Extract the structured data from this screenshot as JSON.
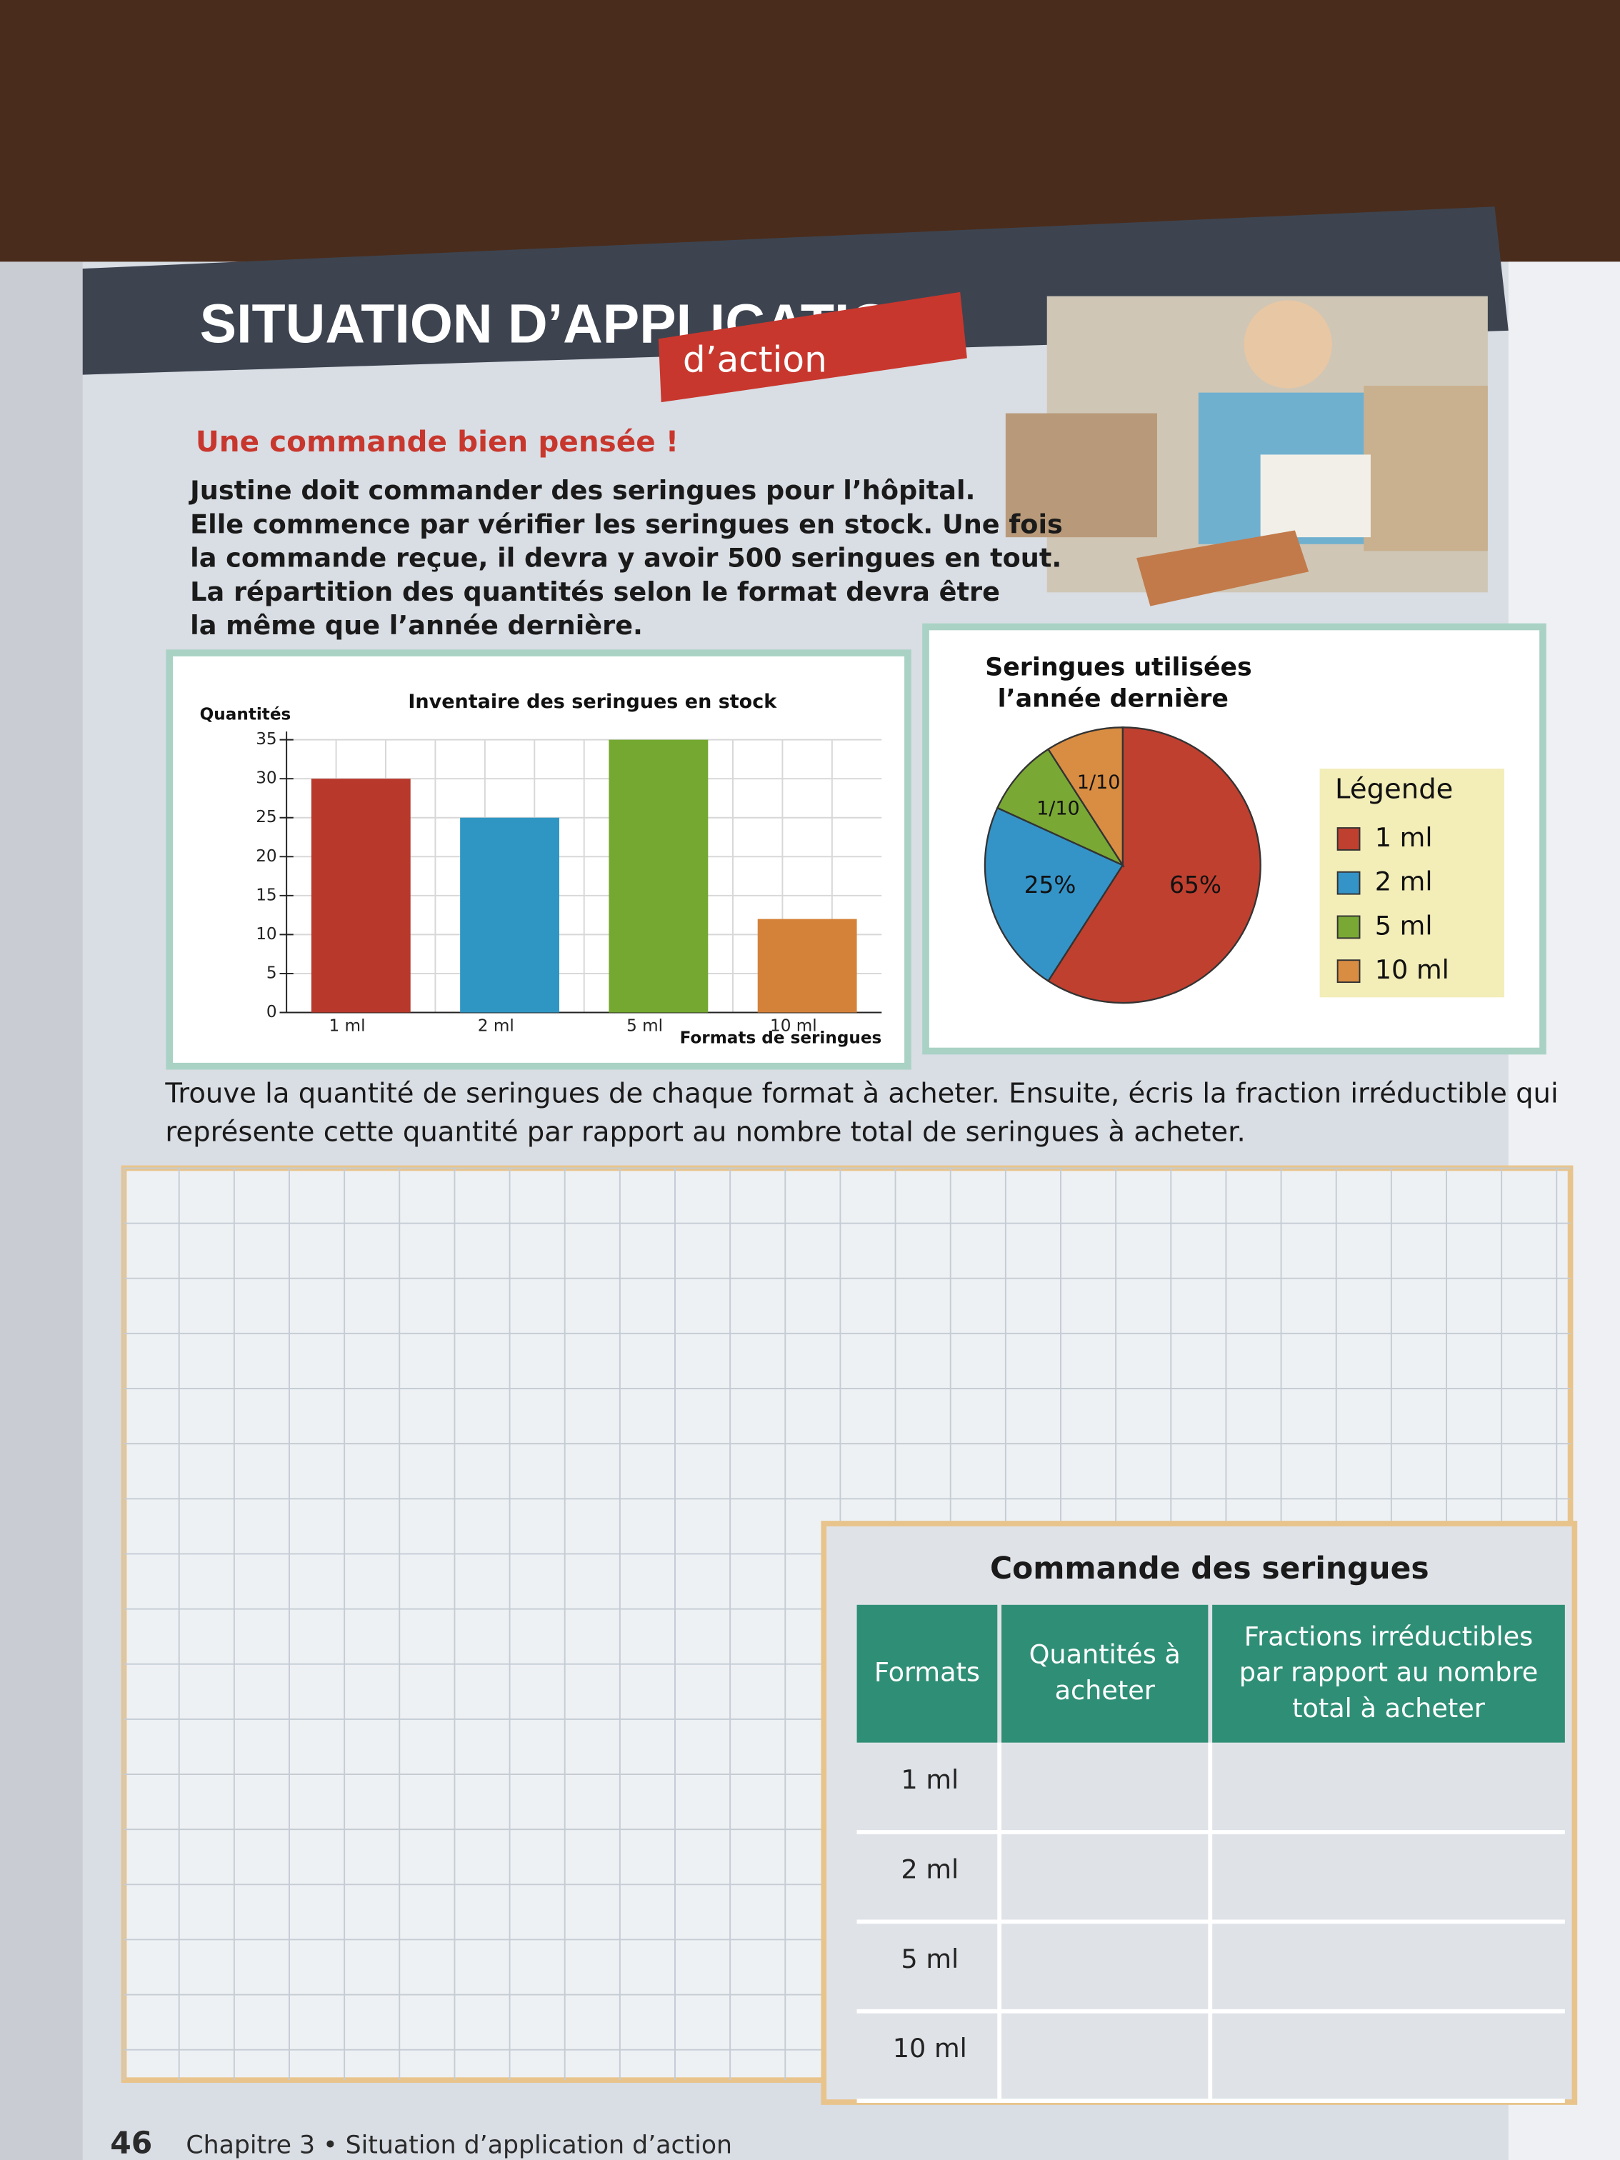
{
  "header": {
    "title": "SITUATION D’APPLICATION",
    "tag": "d’action"
  },
  "problem": {
    "heading": "Une commande bien pensée !",
    "lines": [
      "Justine doit commander des seringues pour l’hôpital.",
      "Elle commence par vérifier les seringues en stock. Une fois",
      "la commande reçue, il devra y avoir 500 seringues en tout.",
      "La répartition des quantités selon le format devra être",
      "la même que l’année dernière."
    ]
  },
  "chart_data": [
    {
      "type": "bar",
      "title": "Inventaire des seringues en stock",
      "y_label": "Quantités",
      "x_label": "Formats de seringues",
      "categories": [
        "1 ml",
        "2 ml",
        "5 ml",
        "10 ml"
      ],
      "values": [
        30,
        25,
        35,
        12
      ],
      "colors": [
        "#b8382c",
        "#2f96c4",
        "#74a830",
        "#d4823a"
      ],
      "ylim": [
        0,
        35
      ],
      "yticks": [
        0,
        5,
        10,
        15,
        20,
        25,
        30,
        35
      ],
      "grid": true
    },
    {
      "type": "pie",
      "title": [
        "Seringues utilisées",
        "l’année dernière"
      ],
      "categories": [
        "1 ml",
        "2 ml",
        "5 ml",
        "10 ml"
      ],
      "values": [
        65,
        25,
        10,
        10
      ],
      "value_labels": [
        "65%",
        "25%",
        "1/10",
        "1/10"
      ],
      "colors": [
        "#c0402f",
        "#3494c8",
        "#7aa835",
        "#d98d42"
      ],
      "legend_title": "Légende"
    }
  ],
  "question": {
    "lines": [
      "Trouve la quantité de seringues de chaque format à acheter. Ensuite, écris la fraction irréductible qui",
      "représente cette quantité par rapport au nombre total de seringues à acheter."
    ]
  },
  "table": {
    "title": "Commande des seringues",
    "headers": [
      [
        "Formats"
      ],
      [
        "Quantités à",
        "acheter"
      ],
      [
        "Fractions irréductibles",
        "par rapport au nombre",
        "total à acheter"
      ]
    ],
    "rows": [
      "1 ml",
      "2 ml",
      "5 ml",
      "10 ml"
    ]
  },
  "footer": {
    "page": "46",
    "chapter": "Chapitre 3 • Situation d’application d’action"
  }
}
